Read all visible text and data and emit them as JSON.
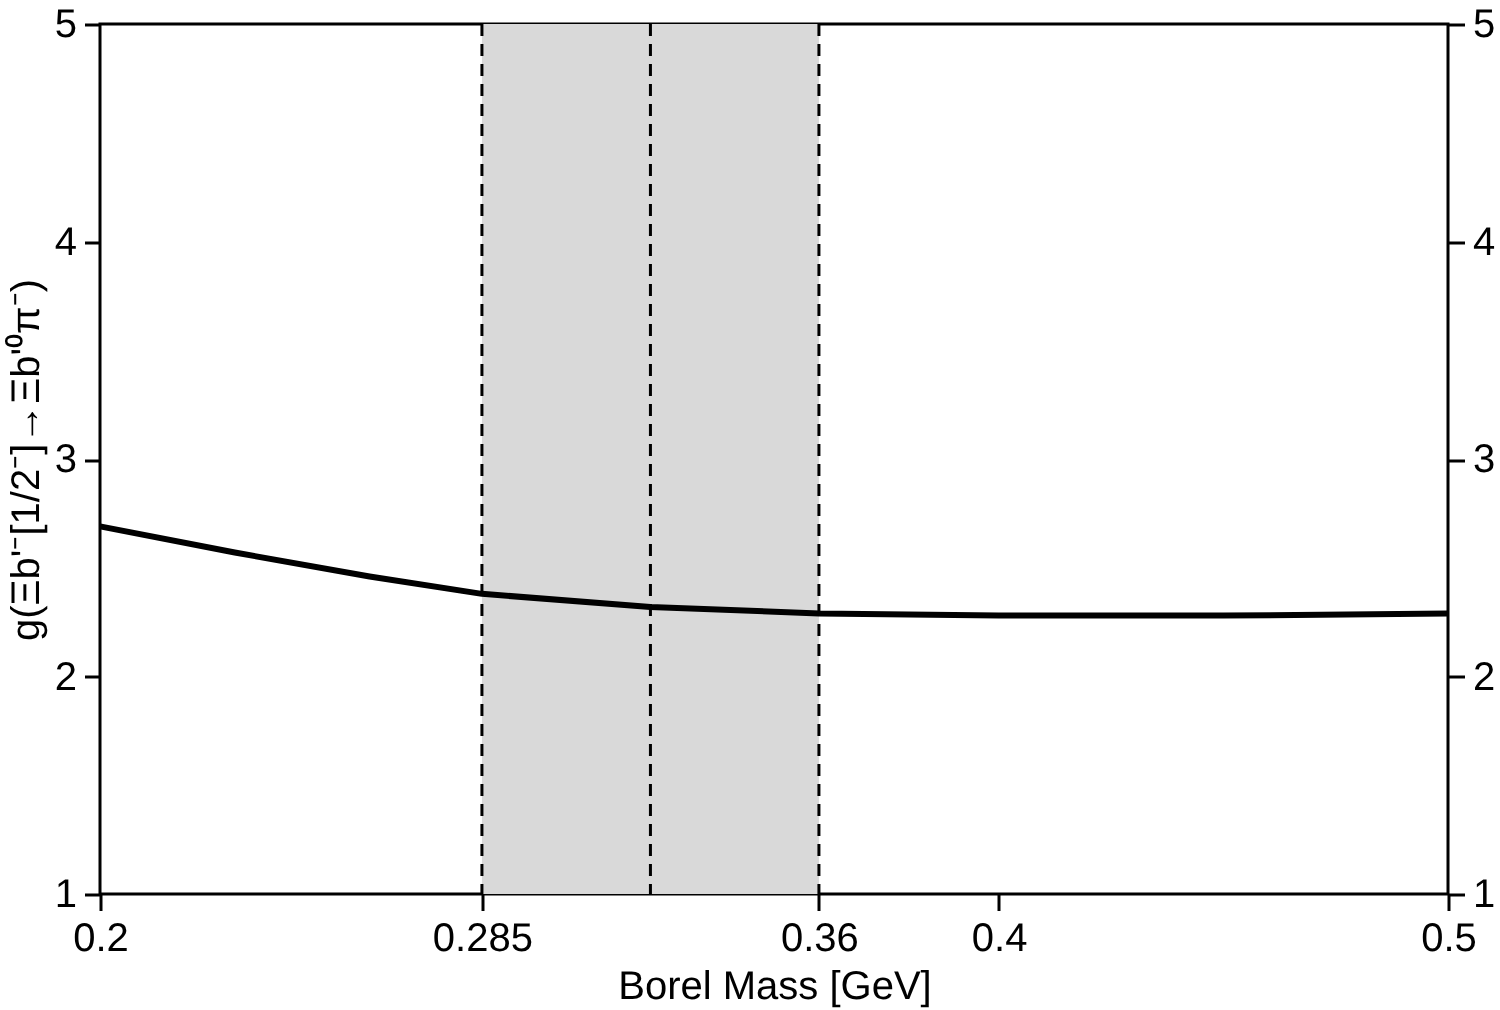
{
  "chart_data": {
    "type": "line",
    "xlabel": "Borel Mass [GeV]",
    "ylabel": "g(Ξb'⁻[1/2⁻]→Ξb'⁰π⁻)",
    "x": [
      0.2,
      0.23,
      0.26,
      0.285,
      0.3225,
      0.36,
      0.4,
      0.45,
      0.5
    ],
    "series": [
      {
        "color": "#000000",
        "values": [
          2.69,
          2.57,
          2.46,
          2.38,
          2.32,
          2.29,
          2.28,
          2.28,
          2.29
        ]
      }
    ],
    "xlim": [
      0.2,
      0.5
    ],
    "xticks": [
      0.2,
      0.285,
      0.36,
      0.4,
      0.5
    ],
    "ylim": [
      1,
      5
    ],
    "yticks": [
      1,
      2,
      3,
      4,
      5
    ],
    "y2lim": [
      1,
      5
    ],
    "y2ticks": [
      1,
      2,
      3,
      4,
      5
    ],
    "bands": [
      {
        "axis": "x",
        "from": 0.285,
        "to": 0.36,
        "color": "#d9d9d9"
      }
    ],
    "ref_lines": [
      {
        "axis": "x",
        "value": 0.285,
        "line_style": "dashed",
        "color": "#000000"
      },
      {
        "axis": "x",
        "value": 0.3225,
        "line_style": "dashed",
        "color": "#000000"
      },
      {
        "axis": "x",
        "value": 0.36,
        "line_style": "dashed",
        "color": "#000000"
      }
    ],
    "grid": false,
    "legend": false,
    "marker": "none",
    "line_style": "solid"
  }
}
